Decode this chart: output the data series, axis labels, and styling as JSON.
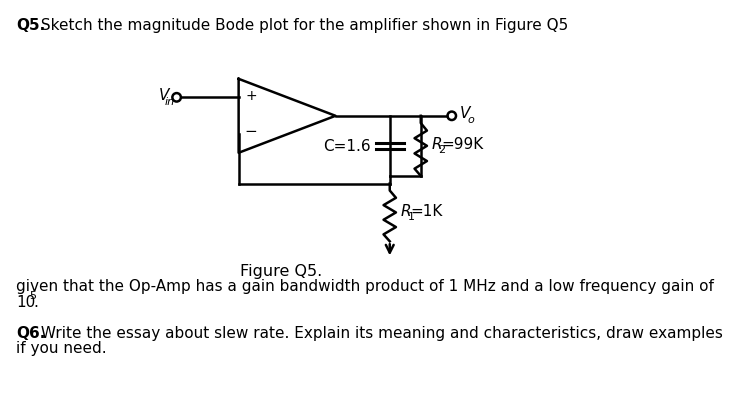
{
  "title_bold": "Q5.",
  "title_text": " Sketch the magnitude Bode plot for the amplifier shown in Figure Q5",
  "vin_label": "V",
  "vin_sub": "in",
  "vo_label": "V",
  "vo_sub": "o",
  "c_label": "C=1.6",
  "r2_label": "R",
  "r2_sub": "2",
  "r2_val": "=99K",
  "r1_label": "R",
  "r1_sub": "1",
  "r1_val": "=1K",
  "figure_label": "Figure Q5.",
  "para1": "given that the Op-Amp has a gain bandwidth product of 1 MHz and a low frequency gain of",
  "para1_math": "10",
  "para1_sup": "5",
  "para1_end": ".",
  "q6_bold": "Q6.",
  "q6_text": " Write the essay about slew rate. Explain its meaning and characteristics, draw examples",
  "q6_text2": "if you need.",
  "bg_color": "#ffffff",
  "text_color": "#000000",
  "font_size": 11,
  "lw": 1.8
}
